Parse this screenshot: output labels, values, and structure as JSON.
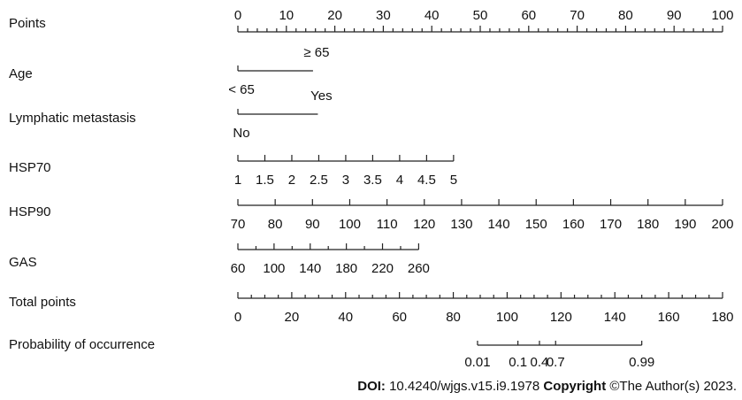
{
  "chart_data": {
    "type": "nomogram",
    "rows": [
      {
        "label": "Points",
        "kind": "axis",
        "range": [
          0,
          100
        ],
        "tick_labels": [
          "0",
          "10",
          "20",
          "30",
          "40",
          "50",
          "60",
          "70",
          "80",
          "90",
          "100"
        ],
        "label_position": "above",
        "minor_step": 2
      },
      {
        "label": "Age",
        "kind": "categorical",
        "categories": [
          {
            "text": "< 65",
            "points": 0,
            "side": "below"
          },
          {
            "text": "≥ 65",
            "points": 15.5,
            "side": "above"
          }
        ]
      },
      {
        "label": "Lymphatic  metastasis",
        "kind": "categorical",
        "categories": [
          {
            "text": "No",
            "points": 0,
            "side": "below"
          },
          {
            "text": "Yes",
            "points": 16.5,
            "side": "above"
          }
        ]
      },
      {
        "label": "HSP70",
        "kind": "axis",
        "range": [
          1,
          5
        ],
        "points_range": [
          0,
          44.5
        ],
        "tick_labels": [
          "1",
          "1.5",
          "2",
          "2.5",
          "3",
          "3.5",
          "4",
          "4.5",
          "5"
        ],
        "label_position": "below"
      },
      {
        "label": "HSP90",
        "kind": "axis",
        "range": [
          70,
          200
        ],
        "points_range": [
          0,
          100
        ],
        "tick_labels": [
          "70",
          "80",
          "90",
          "100",
          "110",
          "120",
          "130",
          "140",
          "150",
          "160",
          "170",
          "180",
          "190",
          "200"
        ],
        "label_position": "below"
      },
      {
        "label": "GAS",
        "kind": "axis",
        "range": [
          60,
          260
        ],
        "points_range": [
          0,
          37.3
        ],
        "major_values": [
          60,
          100,
          140,
          180,
          220,
          260
        ],
        "tick_labels": [
          "60",
          "100",
          "140",
          "180",
          "220",
          "260"
        ],
        "minor_values": [
          80,
          120,
          160,
          200,
          240
        ],
        "label_position": "below"
      },
      {
        "label": "Total points",
        "kind": "axis",
        "range": [
          0,
          180
        ],
        "points_range": [
          0,
          100
        ],
        "tick_labels": [
          "0",
          "20",
          "40",
          "60",
          "80",
          "100",
          "120",
          "140",
          "160",
          "180"
        ],
        "label_position": "below",
        "minor_step": 5
      },
      {
        "label": "Probability of occurrence",
        "kind": "axis",
        "range_total_points": [
          89,
          150
        ],
        "values": [
          0.01,
          0.1,
          0.4,
          0.7,
          0.99
        ],
        "total_points_at": [
          89,
          104,
          112,
          118,
          150
        ],
        "tick_labels": [
          "0.01",
          "0.1",
          "0.4",
          "0.7",
          "0.99"
        ],
        "label_position": "below"
      }
    ]
  },
  "caption": {
    "doi_label": "DOI:",
    "doi_value": " 10.4240/wjgs.v15.i9.1978 ",
    "copyright_label": "Copyright",
    "copyright_text": " ©The Author(s) 2023."
  }
}
